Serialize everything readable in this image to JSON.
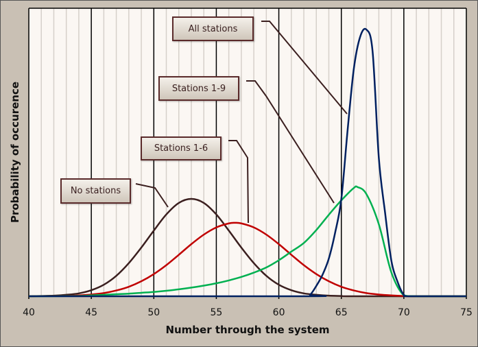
{
  "chart_data": {
    "type": "line",
    "title": "",
    "xlabel": "Number through the system",
    "ylabel": "Probability of occurence",
    "xlim": [
      40,
      75
    ],
    "ylim": [
      0,
      1
    ],
    "xticks": [
      40,
      45,
      50,
      55,
      60,
      65,
      70,
      75
    ],
    "grid": "vertical major every 5, minor every 1",
    "legend": "callout labels",
    "series": [
      {
        "name": "No stations",
        "color": "#3b1f1f",
        "x": [
          40,
          41,
          42,
          43,
          44,
          45,
          46,
          47,
          48,
          49,
          50,
          51,
          52,
          53,
          54,
          55,
          56,
          57,
          58,
          59,
          60,
          61,
          62,
          63,
          64,
          65,
          66,
          75
        ],
        "y": [
          0,
          0.001,
          0.002,
          0.005,
          0.01,
          0.021,
          0.04,
          0.071,
          0.115,
          0.169,
          0.228,
          0.284,
          0.324,
          0.338,
          0.324,
          0.284,
          0.228,
          0.169,
          0.115,
          0.071,
          0.04,
          0.021,
          0.01,
          0.005,
          0.002,
          0.001,
          0,
          0
        ]
      },
      {
        "name": "Stations 1-6",
        "color": "#c00000",
        "x": [
          40,
          42,
          43,
          44,
          45,
          46,
          47,
          48,
          49,
          50,
          51,
          52,
          53,
          54,
          55,
          56,
          56.5,
          57,
          58,
          59,
          60,
          61,
          62,
          63,
          64,
          65,
          66,
          67,
          68,
          69,
          70,
          71,
          75
        ],
        "y": [
          0,
          0.001,
          0.001,
          0.003,
          0.006,
          0.011,
          0.02,
          0.033,
          0.052,
          0.077,
          0.108,
          0.144,
          0.181,
          0.214,
          0.239,
          0.253,
          0.255,
          0.253,
          0.239,
          0.214,
          0.181,
          0.144,
          0.108,
          0.077,
          0.052,
          0.033,
          0.02,
          0.011,
          0.006,
          0.003,
          0.001,
          0,
          0
        ]
      },
      {
        "name": "Stations 1-9",
        "color": "#00b050",
        "x": [
          40,
          44,
          45,
          46,
          47,
          48,
          49,
          50,
          51,
          52,
          53,
          54,
          55,
          56,
          57,
          58,
          59,
          60,
          61,
          62,
          63,
          64,
          65,
          66,
          66.3,
          67,
          68,
          69,
          70,
          71,
          75
        ],
        "y": [
          0,
          0.001,
          0.003,
          0.005,
          0.007,
          0.009,
          0.012,
          0.015,
          0.019,
          0.024,
          0.03,
          0.037,
          0.045,
          0.055,
          0.067,
          0.082,
          0.1,
          0.125,
          0.155,
          0.185,
          0.23,
          0.283,
          0.333,
          0.376,
          0.379,
          0.355,
          0.25,
          0.083,
          0.003,
          0,
          0
        ]
      },
      {
        "name": "All stations",
        "color": "#002060",
        "x": [
          40,
          62,
          62.5,
          63,
          63.5,
          64,
          64.5,
          65,
          65.5,
          66,
          66.5,
          67,
          67.5,
          68,
          68.5,
          69,
          69.5,
          70,
          70.5,
          75
        ],
        "y": [
          0,
          0,
          0.005,
          0.036,
          0.075,
          0.131,
          0.22,
          0.338,
          0.576,
          0.79,
          0.9,
          0.926,
          0.85,
          0.48,
          0.29,
          0.124,
          0.05,
          0.005,
          0,
          0
        ]
      }
    ]
  }
}
